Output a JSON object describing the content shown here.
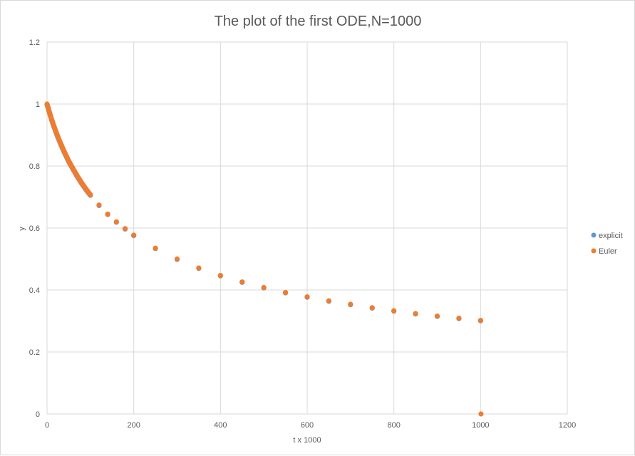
{
  "chart_data": {
    "type": "scatter",
    "title": "The plot of the first ODE,N=1000",
    "xlabel": "t x 1000",
    "ylabel": "y",
    "xlim": [
      0,
      1200
    ],
    "ylim": [
      0,
      1.2
    ],
    "x_ticks": [
      "0",
      "200",
      "400",
      "600",
      "800",
      "1000",
      "1200"
    ],
    "y_ticks": [
      "0",
      "0.2",
      "0.4",
      "0.6",
      "0.8",
      "1",
      "1.2"
    ],
    "grid": true,
    "legend_position": "right",
    "series": [
      {
        "name": "explicit",
        "color": "#5b9bd5",
        "points": [
          [
            0,
            1.0
          ],
          [
            5,
            0.976
          ],
          [
            10,
            0.953
          ],
          [
            15,
            0.932
          ],
          [
            20,
            0.913
          ],
          [
            25,
            0.894
          ],
          [
            30,
            0.877
          ],
          [
            40,
            0.845
          ],
          [
            50,
            0.816
          ],
          [
            60,
            0.791
          ],
          [
            70,
            0.767
          ],
          [
            80,
            0.745
          ],
          [
            90,
            0.725
          ],
          [
            100,
            0.707
          ],
          [
            120,
            0.674
          ],
          [
            140,
            0.645
          ],
          [
            160,
            0.62
          ],
          [
            180,
            0.598
          ],
          [
            200,
            0.577
          ],
          [
            250,
            0.535
          ],
          [
            300,
            0.5
          ],
          [
            350,
            0.471
          ],
          [
            400,
            0.447
          ],
          [
            450,
            0.426
          ],
          [
            500,
            0.408
          ],
          [
            550,
            0.392
          ],
          [
            600,
            0.378
          ],
          [
            650,
            0.365
          ],
          [
            700,
            0.354
          ],
          [
            750,
            0.343
          ],
          [
            800,
            0.333
          ],
          [
            850,
            0.324
          ],
          [
            900,
            0.316
          ],
          [
            950,
            0.309
          ],
          [
            1000,
            0.302
          ]
        ]
      },
      {
        "name": "Euler",
        "color": "#ed7d31",
        "points": [
          [
            0,
            1.0
          ],
          [
            5,
            0.976
          ],
          [
            10,
            0.953
          ],
          [
            15,
            0.932
          ],
          [
            20,
            0.913
          ],
          [
            25,
            0.894
          ],
          [
            30,
            0.877
          ],
          [
            40,
            0.845
          ],
          [
            50,
            0.816
          ],
          [
            60,
            0.791
          ],
          [
            70,
            0.767
          ],
          [
            80,
            0.745
          ],
          [
            90,
            0.725
          ],
          [
            100,
            0.707
          ],
          [
            120,
            0.674
          ],
          [
            140,
            0.645
          ],
          [
            160,
            0.62
          ],
          [
            180,
            0.598
          ],
          [
            200,
            0.577
          ],
          [
            250,
            0.535
          ],
          [
            300,
            0.5
          ],
          [
            350,
            0.471
          ],
          [
            400,
            0.447
          ],
          [
            450,
            0.426
          ],
          [
            500,
            0.408
          ],
          [
            550,
            0.392
          ],
          [
            600,
            0.378
          ],
          [
            650,
            0.365
          ],
          [
            700,
            0.354
          ],
          [
            750,
            0.343
          ],
          [
            800,
            0.333
          ],
          [
            850,
            0.324
          ],
          [
            900,
            0.316
          ],
          [
            950,
            0.309
          ],
          [
            1000,
            0.302
          ],
          [
            1001,
            0
          ]
        ]
      }
    ]
  }
}
